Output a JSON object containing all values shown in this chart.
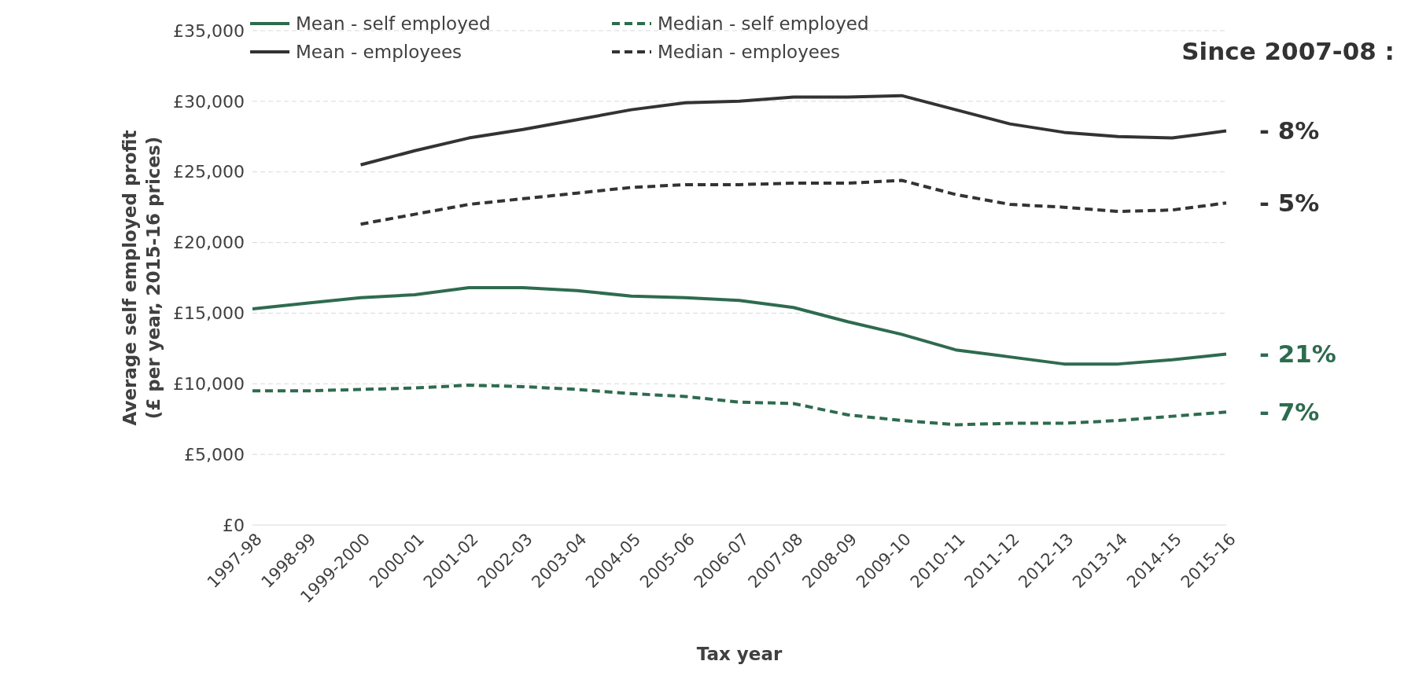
{
  "chart_data": {
    "type": "line",
    "xlabel": "Tax year",
    "ylabel": "Average self employed profit\n(£ per year, 2015-16 prices)",
    "categories": [
      "1997-98",
      "1998-99",
      "1999-2000",
      "2000-01",
      "2001-02",
      "2002-03",
      "2003-04",
      "2004-05",
      "2005-06",
      "2006-07",
      "2007-08",
      "2008-09",
      "2009-10",
      "2010-11",
      "2011-12",
      "2012-13",
      "2013-14",
      "2014-15",
      "2015-16"
    ],
    "series": [
      {
        "name": "Mean - self employed",
        "color": "#2e6b4f",
        "line_style": "solid",
        "values": [
          15300,
          15700,
          16100,
          16300,
          16800,
          16800,
          16600,
          16200,
          16100,
          15900,
          15400,
          14400,
          13500,
          12400,
          11900,
          11400,
          11400,
          11700,
          12100
        ]
      },
      {
        "name": "Median - self employed",
        "color": "#2e6b4f",
        "line_style": "dashed",
        "values": [
          9500,
          9500,
          9600,
          9700,
          9900,
          9800,
          9600,
          9300,
          9100,
          8700,
          8600,
          7800,
          7400,
          7100,
          7200,
          7200,
          7400,
          7700,
          8000
        ]
      },
      {
        "name": "Mean - employees",
        "color": "#333333",
        "line_style": "solid",
        "values": [
          null,
          null,
          25500,
          26500,
          27400,
          28000,
          28700,
          29400,
          29900,
          30000,
          30300,
          30300,
          30400,
          29400,
          28400,
          27800,
          27500,
          27400,
          27900
        ]
      },
      {
        "name": "Median - employees",
        "color": "#333333",
        "line_style": "dashed",
        "values": [
          null,
          null,
          21300,
          22000,
          22700,
          23100,
          23500,
          23900,
          24100,
          24100,
          24200,
          24200,
          24400,
          23400,
          22700,
          22500,
          22200,
          22300,
          22800
        ]
      }
    ],
    "ylim": [
      0,
      35000
    ],
    "yticks": [
      {
        "value": 0,
        "label": "£0"
      },
      {
        "value": 5000,
        "label": "£5,000"
      },
      {
        "value": 10000,
        "label": "£10,000"
      },
      {
        "value": 15000,
        "label": "£15,000"
      },
      {
        "value": 20000,
        "label": "£20,000"
      },
      {
        "value": 25000,
        "label": "£25,000"
      },
      {
        "value": 30000,
        "label": "£30,000"
      },
      {
        "value": 35000,
        "label": "£35,000"
      }
    ],
    "grid": "y",
    "legend": "top",
    "marker": "none",
    "annotations": [
      "Since 2007-08 :",
      {
        "text": "- 8%",
        "x": "2015-16",
        "y": 27900
      },
      {
        "text": "- 5%",
        "x": "2015-16",
        "y": 22800
      },
      {
        "text": "- 21%",
        "x": "2015-16",
        "y": 12100
      },
      {
        "text": "- 7%",
        "x": "2015-16",
        "y": 8000
      }
    ]
  }
}
